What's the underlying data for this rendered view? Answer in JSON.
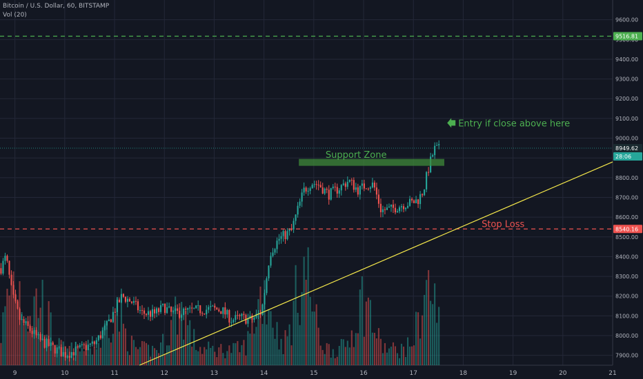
{
  "header": {
    "symbol_line": "Bitcoin / U.S. Dollar, 60, BITSTAMP",
    "volume_line": "Vol (20)"
  },
  "colors": {
    "background": "#131722",
    "grid": "#242838",
    "up": "#26a69a",
    "down": "#ef5350",
    "trendline": "#f5e84b",
    "green_level": "#4caf50",
    "red_level": "#ef5350",
    "axis_text": "#b2b5be"
  },
  "chart_data": {
    "type": "candlestick",
    "y_ticks": [
      "9600.00",
      "9500.00",
      "9400.00",
      "9300.00",
      "9200.00",
      "9100.00",
      "9000.00",
      "8900.00",
      "8800.00",
      "8700.00",
      "8600.00",
      "8500.00",
      "8400.00",
      "8300.00",
      "8200.00",
      "8100.00",
      "8000.00",
      "7900.00"
    ],
    "x_ticks": [
      "9",
      "10",
      "11",
      "12",
      "13",
      "14",
      "15",
      "16",
      "17",
      "18",
      "19",
      "20",
      "21"
    ],
    "ylim": [
      7850,
      9700
    ],
    "xlim": [
      8.7,
      21.0
    ],
    "price_labels": {
      "target": "9516.81",
      "current": "8949.62",
      "countdown": "28:06",
      "stop": "8540.16"
    },
    "levels": [
      {
        "name": "target",
        "value": 9516.81,
        "style": "dashed",
        "color": "#4caf50"
      },
      {
        "name": "stop",
        "value": 8540.16,
        "style": "dashed",
        "color": "#ef5350"
      },
      {
        "name": "current",
        "value": 8949.62,
        "style": "dotted",
        "color": "#26a69a"
      }
    ],
    "trendline": {
      "from": [
        11.5,
        7850
      ],
      "to": [
        21.0,
        8880
      ]
    },
    "support_zone": {
      "x_range": [
        14.7,
        17.62
      ],
      "y_range": [
        8860,
        8895
      ]
    },
    "annotations": [
      {
        "text": "Support Zone",
        "x": 15.85,
        "y": 8900,
        "color": "#4caf50"
      },
      {
        "text": "Entry if close above here",
        "x": 17.9,
        "y": 9060,
        "color": "#4caf50"
      },
      {
        "text": "Stop Loss",
        "x": 18.8,
        "y": 8550,
        "color": "#ef5350"
      }
    ],
    "anchors": [
      [
        8.7,
        8330
      ],
      [
        8.82,
        8400
      ],
      [
        8.95,
        8200
      ],
      [
        9.1,
        8080
      ],
      [
        9.3,
        8030
      ],
      [
        9.5,
        7975
      ],
      [
        9.75,
        7940
      ],
      [
        10.0,
        7905
      ],
      [
        10.3,
        7930
      ],
      [
        10.6,
        7960
      ],
      [
        10.85,
        8050
      ],
      [
        11.0,
        8130
      ],
      [
        11.15,
        8200
      ],
      [
        11.35,
        8170
      ],
      [
        11.55,
        8115
      ],
      [
        11.8,
        8110
      ],
      [
        12.0,
        8145
      ],
      [
        12.15,
        8110
      ],
      [
        12.4,
        8120
      ],
      [
        12.7,
        8130
      ],
      [
        12.95,
        8135
      ],
      [
        13.15,
        8130
      ],
      [
        13.35,
        8080
      ],
      [
        13.55,
        8090
      ],
      [
        13.75,
        8080
      ],
      [
        13.95,
        8120
      ],
      [
        14.05,
        8290
      ],
      [
        14.12,
        8420
      ],
      [
        14.3,
        8490
      ],
      [
        14.55,
        8530
      ],
      [
        14.68,
        8640
      ],
      [
        14.8,
        8735
      ],
      [
        14.95,
        8775
      ],
      [
        15.1,
        8765
      ],
      [
        15.3,
        8715
      ],
      [
        15.5,
        8745
      ],
      [
        15.7,
        8785
      ],
      [
        15.9,
        8735
      ],
      [
        16.05,
        8765
      ],
      [
        16.2,
        8765
      ],
      [
        16.35,
        8635
      ],
      [
        16.55,
        8640
      ],
      [
        16.8,
        8665
      ],
      [
        17.0,
        8675
      ],
      [
        17.1,
        8690
      ],
      [
        17.2,
        8735
      ],
      [
        17.3,
        8845
      ],
      [
        17.42,
        8945
      ],
      [
        17.52,
        8945
      ]
    ],
    "volume_peaks": [
      [
        9.0,
        130
      ],
      [
        9.5,
        90
      ],
      [
        11.0,
        70
      ],
      [
        12.3,
        75
      ],
      [
        14.0,
        105
      ],
      [
        14.8,
        145
      ],
      [
        16.0,
        90
      ],
      [
        17.3,
        110
      ]
    ]
  }
}
